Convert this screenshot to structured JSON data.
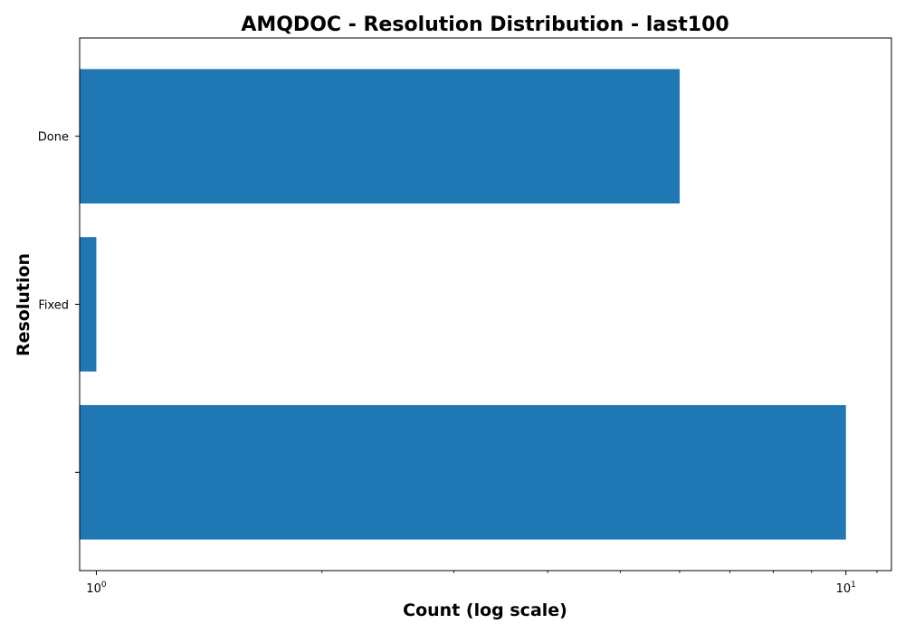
{
  "chart_data": {
    "type": "bar",
    "orientation": "horizontal",
    "title": "AMQDOC - Resolution Distribution - last100",
    "xlabel": "Count (log scale)",
    "ylabel": "Resolution",
    "xscale": "log",
    "xlim": [
      0.95,
      11.5
    ],
    "categories": [
      "",
      "Fixed",
      "Done"
    ],
    "values": [
      10,
      1,
      6
    ],
    "x_ticks": [
      {
        "value": 1,
        "label": "10",
        "exp": "0"
      },
      {
        "value": 10,
        "label": "10",
        "exp": "1"
      }
    ],
    "bar_color": "#1f77b4",
    "grid": false,
    "legend": false
  }
}
